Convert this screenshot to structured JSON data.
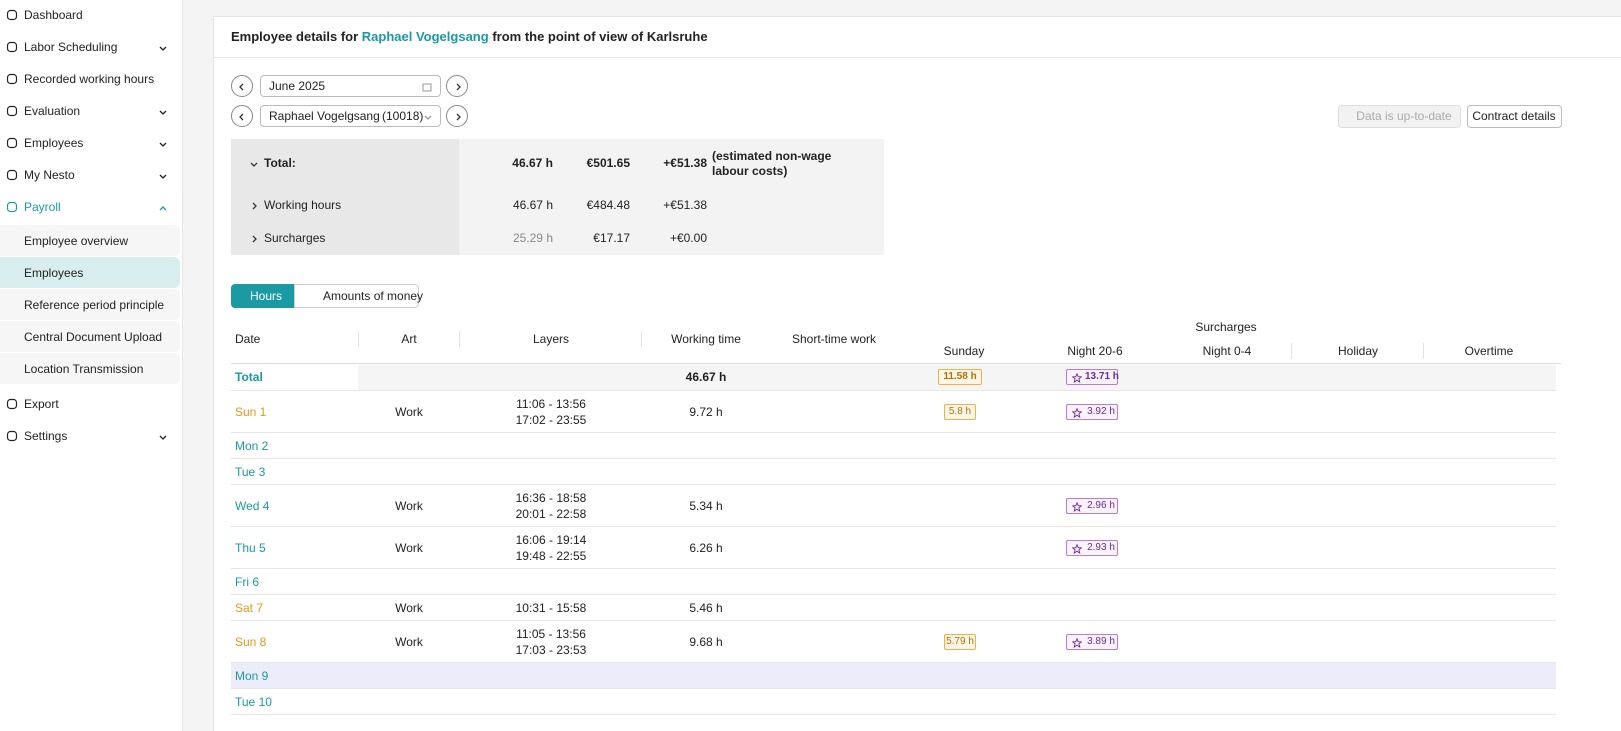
{
  "sidebar": {
    "items": [
      {
        "label": "Dashboard"
      },
      {
        "label": "Labor Scheduling",
        "expandable": true
      },
      {
        "label": "Recorded working hours"
      },
      {
        "label": "Evaluation",
        "expandable": true
      },
      {
        "label": "Employees",
        "expandable": true
      },
      {
        "label": "My Nesto",
        "expandable": true
      },
      {
        "label": "Payroll",
        "expandable": true,
        "expanded": true
      }
    ],
    "payroll_sub": [
      {
        "label": "Employee overview"
      },
      {
        "label": "Employees",
        "active": true
      },
      {
        "label": "Reference period principle"
      },
      {
        "label": "Central Document Upload"
      },
      {
        "label": "Location Transmission"
      }
    ],
    "bottom": [
      {
        "label": "Export"
      },
      {
        "label": "Settings",
        "expandable": true
      }
    ]
  },
  "header": {
    "prefix": "Employee details for",
    "employee": "Raphael Vogelgsang",
    "suffix": "from the point of view of Karlsruhe"
  },
  "controls": {
    "month": "June 2025",
    "employee": "Raphael Vogelgsang",
    "employee_id": "(10018)",
    "status_button": "Data is up-to-date",
    "contract_button": "Contract details"
  },
  "summary": {
    "rows": [
      {
        "label": "Total:",
        "hours": "46.67 h",
        "amount": "€501.65",
        "extra": "+€51.38",
        "expanded": true
      },
      {
        "label": "Working hours",
        "hours": "46.67 h",
        "amount": "€484.48",
        "extra": "+€51.38"
      },
      {
        "label": "Surcharges",
        "hours": "25.29 h",
        "amount": "€17.17",
        "extra": "+€0.00"
      }
    ],
    "note": "(estimated non-wage labour costs)"
  },
  "tabs": [
    {
      "label": "Hours",
      "active": true
    },
    {
      "label": "Amounts of money"
    }
  ],
  "table": {
    "columns": [
      "Date",
      "Art",
      "Layers",
      "Working time",
      "Short-time work"
    ],
    "surcharges_title": "Surcharges",
    "surcharge_columns": [
      "Sunday",
      "Night 20-6",
      "Night 0-4",
      "Holiday",
      "Overtime"
    ],
    "total": {
      "label": "Total",
      "working_time": "46.67 h",
      "sunday": "11.58 h",
      "night": "13.71 h"
    },
    "rows": [
      {
        "date": "Sun 1",
        "weekend": true,
        "art": "Work",
        "layers": [
          "11:06 - 13:56",
          "17:02 - 23:55"
        ],
        "working_time": "9.72 h",
        "sunday": "5.8 h",
        "night": "3.92 h"
      },
      {
        "date": "Mon 2"
      },
      {
        "date": "Tue 3"
      },
      {
        "date": "Wed 4",
        "art": "Work",
        "layers": [
          "16:36 - 18:58",
          "20:01 - 22:58"
        ],
        "working_time": "5.34 h",
        "night": "2.96 h"
      },
      {
        "date": "Thu 5",
        "art": "Work",
        "layers": [
          "16:06 - 19:14",
          "19:48 - 22:55"
        ],
        "working_time": "6.26 h",
        "night": "2.93 h"
      },
      {
        "date": "Fri 6"
      },
      {
        "date": "Sat 7",
        "weekend": true,
        "art": "Work",
        "layers": [
          "10:31 - 15:58"
        ],
        "working_time": "5.46 h"
      },
      {
        "date": "Sun 8",
        "weekend": true,
        "art": "Work",
        "layers": [
          "11:05 - 13:56",
          "17:03 - 23:53"
        ],
        "working_time": "9.68 h",
        "sunday": "5.79 h",
        "night": "3.89 h"
      },
      {
        "date": "Mon 9",
        "highlighted": true
      },
      {
        "date": "Tue 10"
      }
    ]
  }
}
